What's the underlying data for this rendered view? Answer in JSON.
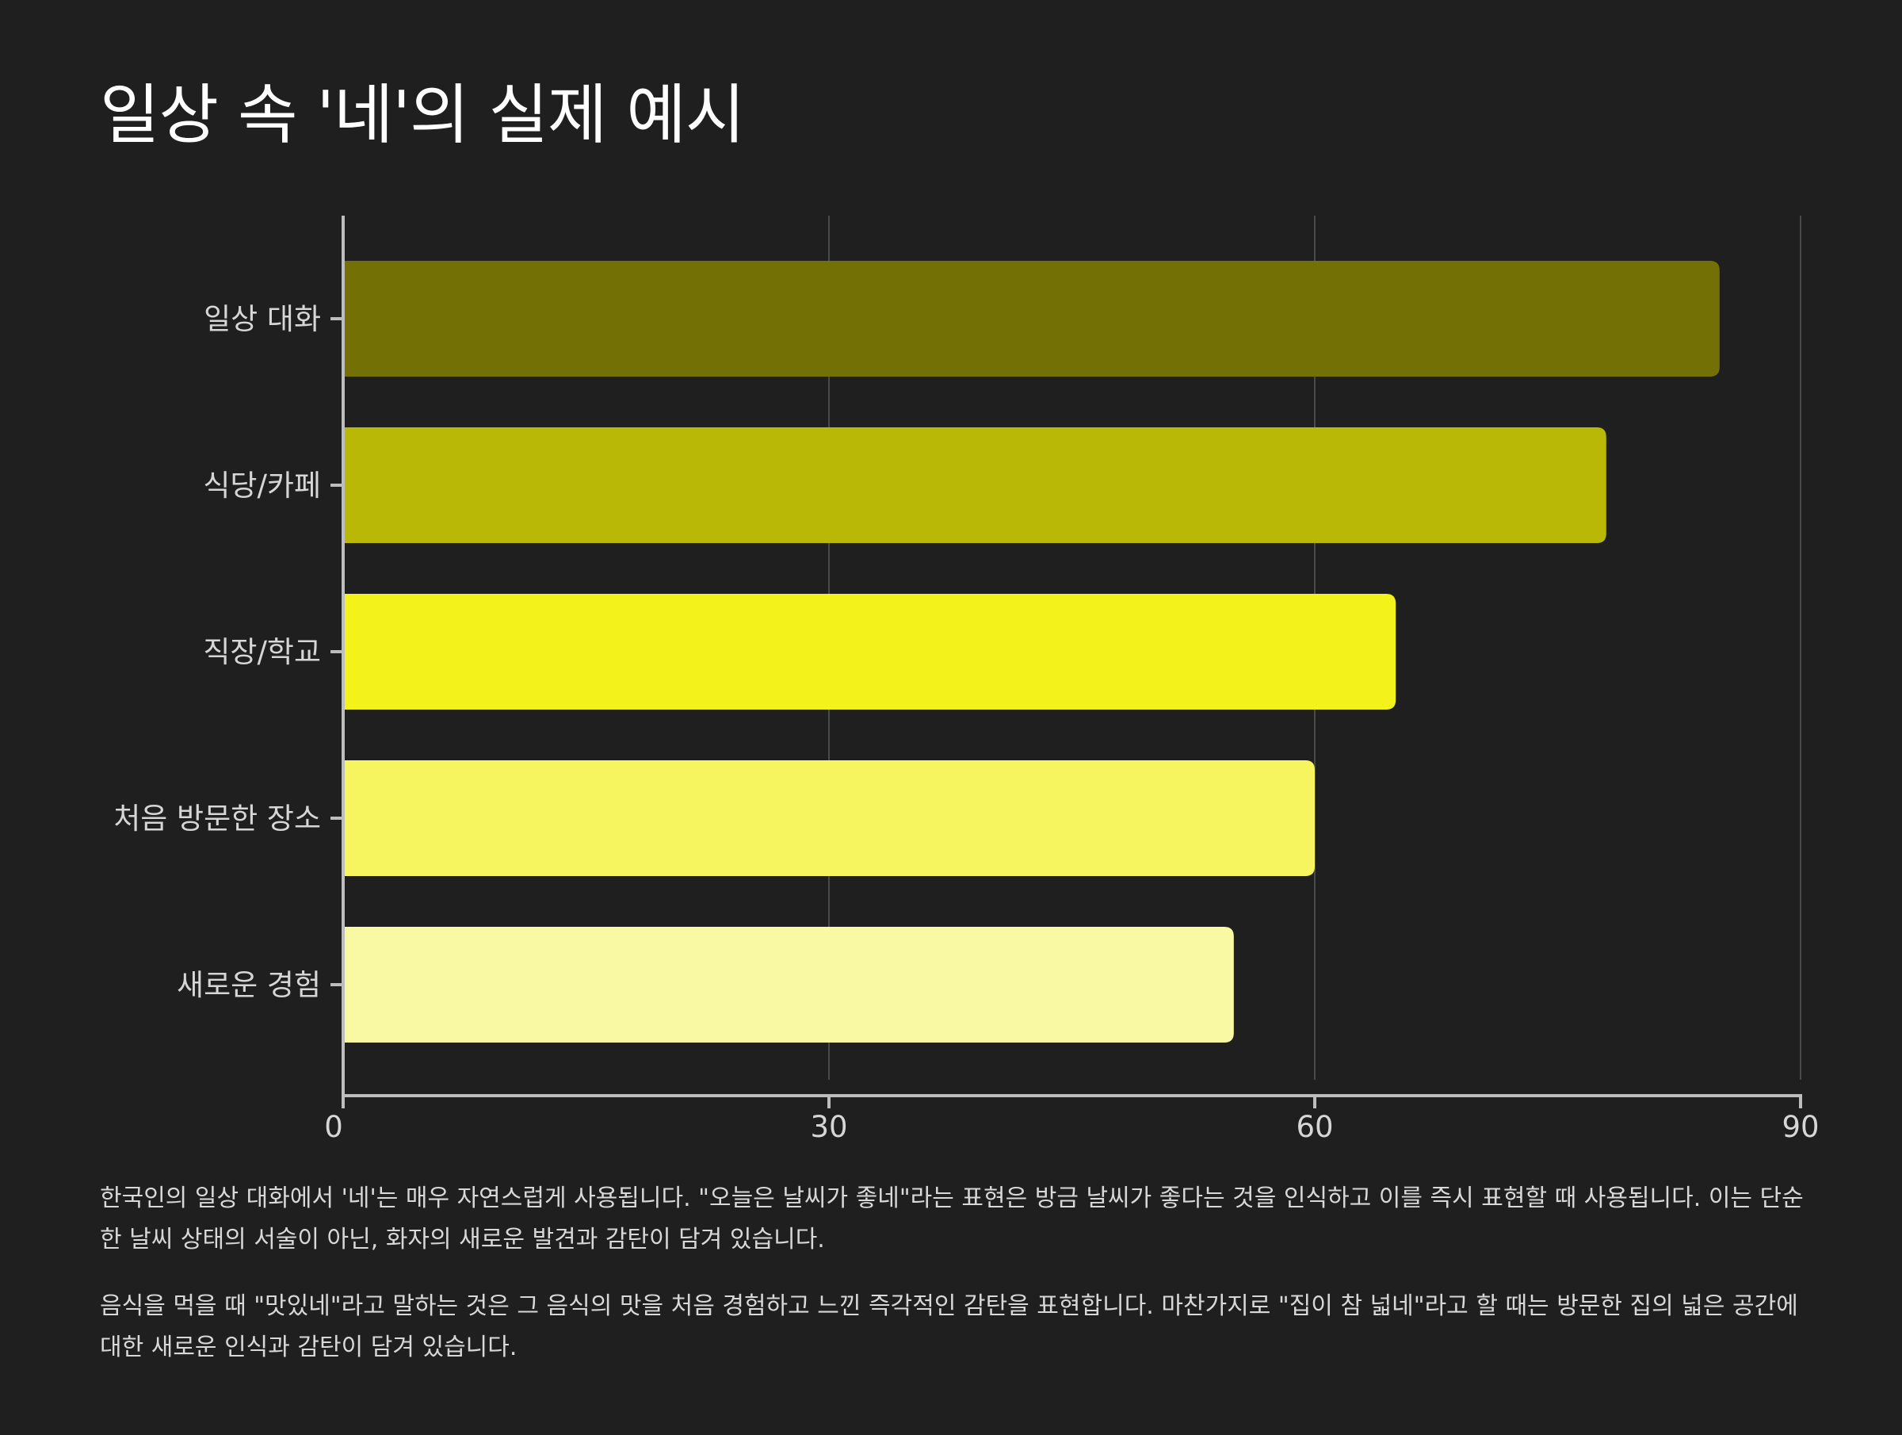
{
  "title": "일상 속 '네'의 실제 예시",
  "chart_data": {
    "type": "bar",
    "orientation": "horizontal",
    "categories": [
      "일상 대화",
      "식당/카페",
      "직장/학교",
      "처음 방문한 장소",
      "새로운 경험"
    ],
    "values": [
      85,
      78,
      65,
      60,
      55
    ],
    "colors": [
      "#737105",
      "#b9b807",
      "#f3f21a",
      "#f6f55f",
      "#f9f9a3"
    ],
    "xlim": [
      0,
      90
    ],
    "xticks": [
      0,
      30,
      60,
      90
    ],
    "grid": true
  },
  "paragraphs": [
    "한국인의 일상 대화에서 '네'는 매우 자연스럽게 사용됩니다. \"오늘은 날씨가 좋네\"라는 표현은 방금 날씨가 좋다는 것을 인식하고 이를 즉시 표현할 때 사용됩니다. 이는 단순한 날씨 상태의 서술이 아닌, 화자의 새로운 발견과 감탄이 담겨 있습니다.",
    "음식을 먹을 때 \"맛있네\"라고 말하는 것은 그 음식의 맛을 처음 경험하고 느낀 즉각적인 감탄을 표현합니다. 마찬가지로 \"집이 참 넓네\"라고 할 때는 방문한 집의 넓은 공간에 대한 새로운 인식과 감탄이 담겨 있습니다."
  ]
}
